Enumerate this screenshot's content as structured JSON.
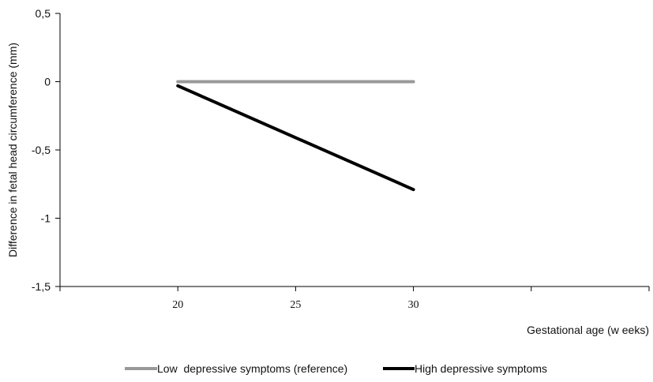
{
  "chart_data": {
    "type": "line",
    "title": "",
    "xlabel": "Gestational age (w eeks)",
    "ylabel": "Difference in fetal head circumference (mm)",
    "x": [
      20,
      30
    ],
    "x_ticks": [
      "20",
      "25",
      "30"
    ],
    "y_ticks": [
      "0,5",
      "0",
      "-0,5",
      "-1",
      "-1,5"
    ],
    "xlim": [
      15,
      40
    ],
    "ylim": [
      -1.5,
      0.5
    ],
    "grid": false,
    "legend_position": "bottom",
    "series": [
      {
        "name": "Low  depressive symptoms (reference)",
        "x": [
          20,
          30
        ],
        "values": [
          0,
          0
        ],
        "color": "#999999"
      },
      {
        "name": "High depressive symptoms",
        "x": [
          20,
          30
        ],
        "values": [
          -0.03,
          -0.79
        ],
        "color": "#000000"
      }
    ]
  }
}
